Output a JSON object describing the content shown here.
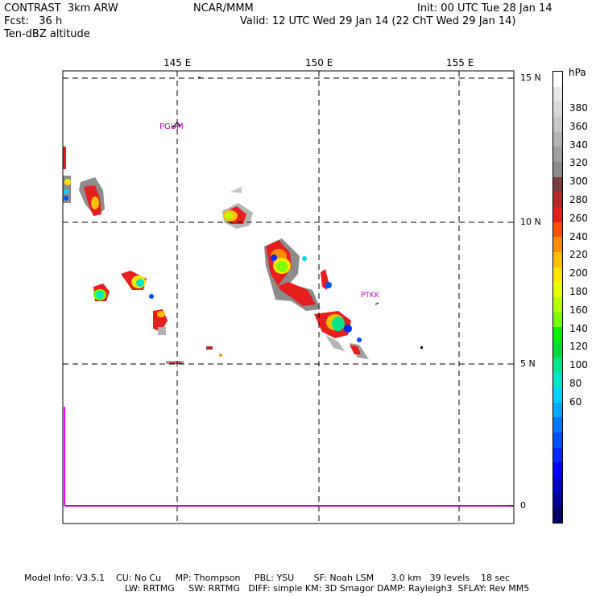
{
  "header": {
    "line1_left": "CONTRAST  3km ARW",
    "line1_center": "NCAR/MMM",
    "line1_right": "Init: 00 UTC Tue 28 Jan 14",
    "line2_left": "Fcst:   36 h",
    "line2_right": "Valid: 12 UTC Wed 29 Jan 14 (22 ChT Wed 29 Jan 14)",
    "line3_left": "Ten-dBZ altitude"
  },
  "map": {
    "lon_labels": [
      "145 E",
      "150 E",
      "155 E"
    ],
    "lat_labels": [
      "15 N",
      "10 N",
      "5 N",
      "0"
    ],
    "stations": [
      "PGUM",
      "PTKK"
    ],
    "grid_style": "dashed",
    "outline_color": "#ff00ff"
  },
  "colorbar": {
    "unit": "hPa",
    "labels": [
      "380",
      "360",
      "340",
      "320",
      "300",
      "280",
      "260",
      "240",
      "220",
      "200",
      "180",
      "160",
      "140",
      "120",
      "100",
      "80",
      "60"
    ],
    "colors": [
      "#ffffff",
      "#e8e8e8",
      "#d8d8d8",
      "#c8c8c8",
      "#b4b4b4",
      "#a0a0a0",
      "#8c8c8c",
      "#783c3c",
      "#b42828",
      "#e61e1e",
      "#ff5000",
      "#ff8c00",
      "#ffbe00",
      "#ffe600",
      "#e6ff00",
      "#b4ff00",
      "#78ff00",
      "#00f000",
      "#00dc3c",
      "#00e68c",
      "#00e6c8",
      "#00d2ff",
      "#00aaff",
      "#0078ff",
      "#0050ff",
      "#0028ff",
      "#0000ff",
      "#0000c8",
      "#000096",
      "#000064"
    ]
  },
  "footer": {
    "line1": "Model Info: V3.5.1    CU: No Cu     MP: Thompson     PBL: YSU       SF: Noah LSM      3.0 km   39 levels    18 sec",
    "line2": "LW: RRTMG     SW: RRTMG   DIFF: simple KM: 3D Smagor DAMP: Rayleigh3  SFLAY: Rev MM5"
  }
}
